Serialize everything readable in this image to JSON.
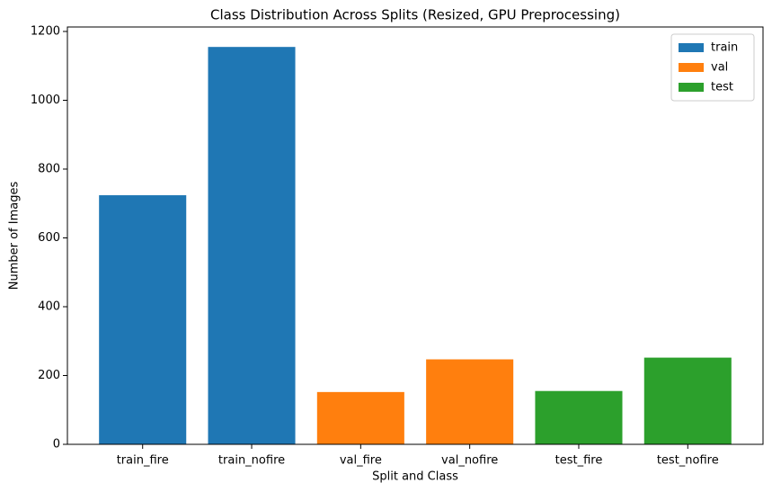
{
  "chart_data": {
    "type": "bar",
    "title": "Class Distribution Across Splits (Resized, GPU Preprocessing)",
    "x_label": "Split and Class",
    "y_label": "Number of Images",
    "categories": [
      "train_fire",
      "train_nofire",
      "val_fire",
      "val_nofire",
      "test_fire",
      "test_nofire"
    ],
    "series": [
      {
        "name": "train",
        "color": "#1f77b4",
        "values": [
          724,
          1155,
          null,
          null,
          null,
          null
        ]
      },
      {
        "name": "val",
        "color": "#ff7f0e",
        "values": [
          null,
          null,
          152,
          247,
          null,
          null
        ]
      },
      {
        "name": "test",
        "color": "#2ca02c",
        "values": [
          null,
          null,
          null,
          null,
          155,
          252
        ]
      }
    ],
    "ylim": [
      0,
      1213
    ],
    "yticks": [
      0,
      200,
      400,
      600,
      800,
      1000,
      1200
    ],
    "legend": "upper right"
  }
}
